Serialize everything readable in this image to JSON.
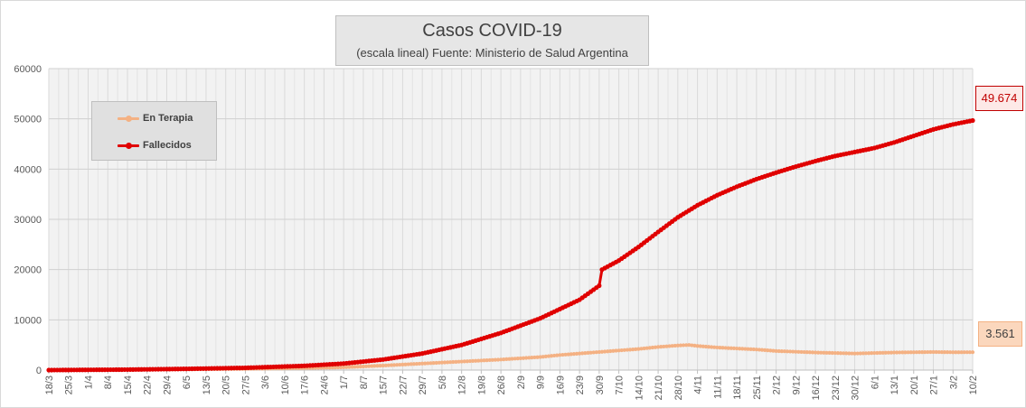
{
  "chart_data": {
    "type": "line",
    "title": "Casos COVID-19",
    "subtitle": "(escala lineal) Fuente: Ministerio de Salud Argentina",
    "ylim": [
      0,
      60000
    ],
    "y_ticks": [
      "0",
      "10000",
      "20000",
      "30000",
      "40000",
      "50000",
      "60000"
    ],
    "x_start": "2020-03-18",
    "x_end": "2021-02-10",
    "x_tick_labels": [
      "18/3",
      "25/3",
      "1/4",
      "8/4",
      "15/4",
      "22/4",
      "29/4",
      "6/5",
      "13/5",
      "20/5",
      "27/5",
      "3/6",
      "10/6",
      "17/6",
      "24/6",
      "1/7",
      "8/7",
      "15/7",
      "22/7",
      "29/7",
      "5/8",
      "12/8",
      "19/8",
      "26/8",
      "2/9",
      "9/9",
      "16/9",
      "23/9",
      "30/9",
      "7/10",
      "14/10",
      "21/10",
      "28/10",
      "4/11",
      "11/11",
      "18/11",
      "25/11",
      "2/12",
      "9/12",
      "16/12",
      "23/12",
      "30/12",
      "6/1",
      "13/1",
      "20/1",
      "27/1",
      "3/2",
      "10/2"
    ],
    "grid": true,
    "legend_position": "top-left",
    "series": [
      {
        "name": "En Terapia",
        "color": "#f4b183",
        "points": [
          [
            "2020-03-18",
            0
          ],
          [
            "2020-04-01",
            50
          ],
          [
            "2020-04-15",
            100
          ],
          [
            "2020-05-06",
            150
          ],
          [
            "2020-05-27",
            250
          ],
          [
            "2020-06-17",
            400
          ],
          [
            "2020-07-01",
            550
          ],
          [
            "2020-07-15",
            900
          ],
          [
            "2020-07-29",
            1300
          ],
          [
            "2020-08-12",
            1700
          ],
          [
            "2020-08-26",
            2100
          ],
          [
            "2020-09-09",
            2600
          ],
          [
            "2020-09-16",
            3000
          ],
          [
            "2020-09-23",
            3300
          ],
          [
            "2020-09-30",
            3600
          ],
          [
            "2020-10-07",
            3900
          ],
          [
            "2020-10-14",
            4200
          ],
          [
            "2020-10-21",
            4600
          ],
          [
            "2020-10-28",
            4900
          ],
          [
            "2020-11-01",
            5000
          ],
          [
            "2020-11-04",
            4800
          ],
          [
            "2020-11-11",
            4500
          ],
          [
            "2020-11-18",
            4300
          ],
          [
            "2020-11-25",
            4100
          ],
          [
            "2020-12-02",
            3800
          ],
          [
            "2020-12-16",
            3500
          ],
          [
            "2020-12-30",
            3300
          ],
          [
            "2021-01-06",
            3400
          ],
          [
            "2021-01-13",
            3500
          ],
          [
            "2021-01-27",
            3600
          ],
          [
            "2021-02-03",
            3550
          ],
          [
            "2021-02-10",
            3561
          ]
        ]
      },
      {
        "name": "Fallecidos",
        "color": "#e00000",
        "points": [
          [
            "2020-03-18",
            0
          ],
          [
            "2020-04-01",
            50
          ],
          [
            "2020-04-15",
            100
          ],
          [
            "2020-05-06",
            250
          ],
          [
            "2020-05-27",
            450
          ],
          [
            "2020-06-17",
            850
          ],
          [
            "2020-07-01",
            1300
          ],
          [
            "2020-07-15",
            2100
          ],
          [
            "2020-07-29",
            3300
          ],
          [
            "2020-08-12",
            5000
          ],
          [
            "2020-08-26",
            7400
          ],
          [
            "2020-09-09",
            10300
          ],
          [
            "2020-09-23",
            14000
          ],
          [
            "2020-09-30",
            16800
          ],
          [
            "2020-10-01",
            20000
          ],
          [
            "2020-10-07",
            21800
          ],
          [
            "2020-10-14",
            24500
          ],
          [
            "2020-10-21",
            27500
          ],
          [
            "2020-10-28",
            30400
          ],
          [
            "2020-11-04",
            32800
          ],
          [
            "2020-11-11",
            34800
          ],
          [
            "2020-11-18",
            36500
          ],
          [
            "2020-11-25",
            38000
          ],
          [
            "2020-12-02",
            39300
          ],
          [
            "2020-12-09",
            40500
          ],
          [
            "2020-12-16",
            41600
          ],
          [
            "2020-12-23",
            42600
          ],
          [
            "2020-12-30",
            43400
          ],
          [
            "2021-01-06",
            44200
          ],
          [
            "2021-01-13",
            45300
          ],
          [
            "2021-01-20",
            46600
          ],
          [
            "2021-01-27",
            47900
          ],
          [
            "2021-02-03",
            48900
          ],
          [
            "2021-02-10",
            49674
          ]
        ]
      }
    ],
    "annotations": [
      {
        "series": "Fallecidos",
        "text": "49.674"
      },
      {
        "series": "En Terapia",
        "text": "3.561"
      }
    ]
  }
}
